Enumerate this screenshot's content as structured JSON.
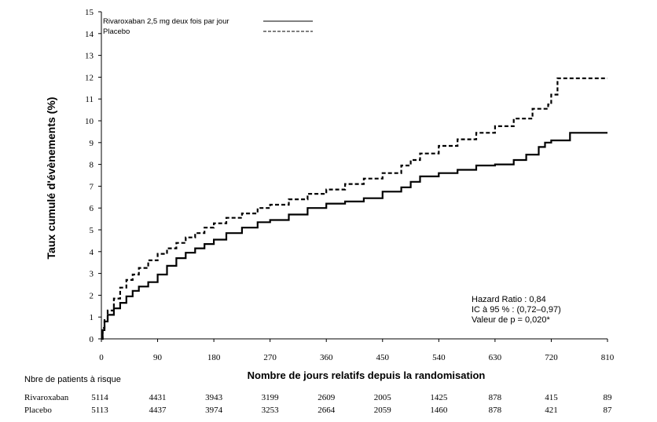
{
  "chart_data": {
    "type": "line",
    "title": "",
    "xlabel": "Nombre de jours relatifs depuis la randomisation",
    "ylabel": "Taux cumulé d'évènements (%)",
    "xlim": [
      0,
      810
    ],
    "ylim": [
      0,
      15
    ],
    "x_ticks": [
      0,
      90,
      180,
      270,
      360,
      450,
      540,
      630,
      720,
      810
    ],
    "y_ticks": [
      0,
      1,
      2,
      3,
      4,
      5,
      6,
      7,
      8,
      9,
      10,
      11,
      12,
      13,
      14,
      15
    ],
    "grid": false,
    "legend_position": "top-left",
    "series": [
      {
        "name": "Rivaroxaban 2,5 mg deux fois par jour",
        "style": "solid",
        "color": "#000000",
        "points": [
          [
            0,
            0
          ],
          [
            2,
            0.4
          ],
          [
            5,
            0.8
          ],
          [
            10,
            1.1
          ],
          [
            20,
            1.4
          ],
          [
            30,
            1.65
          ],
          [
            40,
            1.95
          ],
          [
            50,
            2.2
          ],
          [
            60,
            2.4
          ],
          [
            75,
            2.6
          ],
          [
            90,
            2.95
          ],
          [
            105,
            3.35
          ],
          [
            120,
            3.7
          ],
          [
            135,
            3.95
          ],
          [
            150,
            4.15
          ],
          [
            165,
            4.35
          ],
          [
            180,
            4.55
          ],
          [
            200,
            4.85
          ],
          [
            225,
            5.1
          ],
          [
            250,
            5.35
          ],
          [
            270,
            5.45
          ],
          [
            300,
            5.7
          ],
          [
            330,
            6.0
          ],
          [
            360,
            6.2
          ],
          [
            390,
            6.3
          ],
          [
            420,
            6.45
          ],
          [
            450,
            6.75
          ],
          [
            480,
            6.95
          ],
          [
            495,
            7.2
          ],
          [
            510,
            7.45
          ],
          [
            540,
            7.6
          ],
          [
            570,
            7.75
          ],
          [
            600,
            7.95
          ],
          [
            630,
            8.0
          ],
          [
            660,
            8.2
          ],
          [
            680,
            8.45
          ],
          [
            700,
            8.8
          ],
          [
            710,
            9.0
          ],
          [
            720,
            9.1
          ],
          [
            750,
            9.45
          ],
          [
            810,
            9.45
          ]
        ]
      },
      {
        "name": "Placebo",
        "style": "dashed",
        "color": "#000000",
        "points": [
          [
            0,
            0
          ],
          [
            2,
            0.5
          ],
          [
            5,
            0.9
          ],
          [
            10,
            1.3
          ],
          [
            20,
            1.85
          ],
          [
            30,
            2.35
          ],
          [
            40,
            2.7
          ],
          [
            50,
            2.95
          ],
          [
            60,
            3.25
          ],
          [
            75,
            3.6
          ],
          [
            90,
            3.9
          ],
          [
            105,
            4.15
          ],
          [
            120,
            4.4
          ],
          [
            135,
            4.65
          ],
          [
            150,
            4.85
          ],
          [
            165,
            5.1
          ],
          [
            180,
            5.3
          ],
          [
            200,
            5.55
          ],
          [
            225,
            5.75
          ],
          [
            250,
            6.0
          ],
          [
            270,
            6.15
          ],
          [
            300,
            6.4
          ],
          [
            330,
            6.65
          ],
          [
            360,
            6.85
          ],
          [
            390,
            7.1
          ],
          [
            420,
            7.35
          ],
          [
            450,
            7.6
          ],
          [
            480,
            7.95
          ],
          [
            495,
            8.2
          ],
          [
            510,
            8.5
          ],
          [
            540,
            8.85
          ],
          [
            570,
            9.15
          ],
          [
            600,
            9.45
          ],
          [
            630,
            9.75
          ],
          [
            660,
            10.1
          ],
          [
            690,
            10.55
          ],
          [
            715,
            10.75
          ],
          [
            720,
            11.2
          ],
          [
            730,
            11.95
          ],
          [
            750,
            11.95
          ],
          [
            810,
            11.95
          ]
        ]
      }
    ],
    "annotations": [
      "Hazard Ratio : 0,84",
      "IC à 95 % : (0,72–0,97)",
      "Valeur de p = 0,020*"
    ]
  },
  "risk_table": {
    "title": "Nbre de patients à risque",
    "rows": [
      {
        "label": "Rivaroxaban",
        "values": [
          "5114",
          "4431",
          "3943",
          "3199",
          "2609",
          "2005",
          "1425",
          "878",
          "415",
          "89"
        ]
      },
      {
        "label": "Placebo",
        "values": [
          "5113",
          "4437",
          "3974",
          "3253",
          "2664",
          "2059",
          "1460",
          "878",
          "421",
          "87"
        ]
      }
    ]
  }
}
